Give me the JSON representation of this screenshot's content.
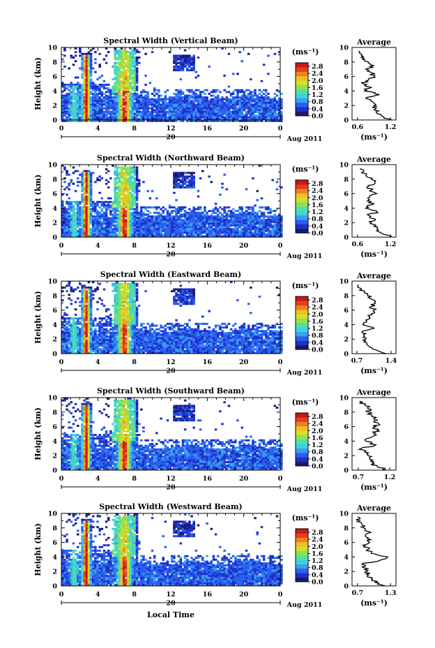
{
  "chart_data": [
    {
      "type": "heatmap",
      "title": "Spectral Width (Vertical Beam)",
      "xlabel": "",
      "ylabel": "Height (km)",
      "x_ticks": [
        "0",
        "4",
        "8",
        "12",
        "16",
        "20",
        "0"
      ],
      "xlim": [
        0,
        24
      ],
      "y_ticks": [
        "0",
        "2",
        "4",
        "6",
        "8",
        "10"
      ],
      "ylim": [
        0,
        10
      ],
      "date_center": "20",
      "date_right": "Aug 2011",
      "colorbar": {
        "unit": "(ms⁻¹)",
        "ticks": [
          "0.0",
          "0.4",
          "0.8",
          "1.2",
          "1.6",
          "2.0",
          "2.4",
          "2.8"
        ],
        "range": [
          0,
          3.0
        ]
      },
      "avg_profile": {
        "title": "Average",
        "xlabel": "(ms⁻¹)",
        "x_ticks": [
          "0.6",
          "1.2"
        ],
        "xlim": [
          0.5,
          1.3
        ],
        "heights_km": [
          0,
          0.5,
          1,
          1.5,
          2,
          2.5,
          3,
          3.5,
          4,
          4.5,
          5,
          5.5,
          6,
          6.5,
          7,
          7.5,
          8,
          8.5,
          9,
          9.5
        ],
        "values": [
          1.22,
          1.05,
          0.95,
          0.92,
          0.9,
          0.88,
          0.75,
          1.0,
          0.72,
          0.85,
          0.7,
          0.8,
          0.9,
          0.85,
          0.75,
          0.9,
          0.8,
          0.72,
          0.68,
          0.62
        ]
      }
    },
    {
      "type": "heatmap",
      "title": "Spectral Width (Northward Beam)",
      "xlabel": "",
      "ylabel": "Height (km)",
      "x_ticks": [
        "0",
        "4",
        "8",
        "12",
        "16",
        "20",
        "0"
      ],
      "xlim": [
        0,
        24
      ],
      "y_ticks": [
        "0",
        "2",
        "4",
        "6",
        "8",
        "10"
      ],
      "ylim": [
        0,
        10
      ],
      "date_center": "20",
      "date_right": "Aug 2011",
      "colorbar": {
        "unit": "(ms⁻¹)",
        "ticks": [
          "0.0",
          "0.4",
          "0.8",
          "1.2",
          "1.6",
          "2.0",
          "2.4",
          "2.8"
        ],
        "range": [
          0,
          3.0
        ]
      },
      "avg_profile": {
        "title": "Average",
        "xlabel": "(ms⁻¹)",
        "x_ticks": [
          "0.6",
          "1.2"
        ],
        "xlim": [
          0.5,
          1.3
        ],
        "heights_km": [
          0,
          0.5,
          1,
          1.5,
          2,
          2.5,
          3,
          3.5,
          4,
          4.5,
          5,
          5.5,
          6,
          6.5,
          7,
          7.5,
          8,
          8.5,
          9,
          9.5
        ],
        "values": [
          1.2,
          1.05,
          0.98,
          0.9,
          0.85,
          0.92,
          0.8,
          0.95,
          0.75,
          0.88,
          0.78,
          0.82,
          0.95,
          0.85,
          0.8,
          0.92,
          0.85,
          0.75,
          0.7,
          0.65
        ]
      }
    },
    {
      "type": "heatmap",
      "title": "Spectral Width (Eastward Beam)",
      "xlabel": "",
      "ylabel": "Height (km)",
      "x_ticks": [
        "0",
        "4",
        "8",
        "12",
        "16",
        "20",
        "0"
      ],
      "xlim": [
        0,
        24
      ],
      "y_ticks": [
        "0",
        "2",
        "4",
        "6",
        "8",
        "10"
      ],
      "ylim": [
        0,
        10
      ],
      "date_center": "20",
      "date_right": "Aug 2011",
      "colorbar": {
        "unit": "(ms⁻¹)",
        "ticks": [
          "0.0",
          "0.4",
          "0.8",
          "1.2",
          "1.6",
          "2.0",
          "2.4",
          "2.8"
        ],
        "range": [
          0,
          3.0
        ]
      },
      "avg_profile": {
        "title": "Average",
        "xlabel": "(ms⁻¹)",
        "x_ticks": [
          "0.7",
          "1.4"
        ],
        "xlim": [
          0.6,
          1.5
        ],
        "heights_km": [
          0,
          0.5,
          1,
          1.5,
          2,
          2.5,
          3,
          3.5,
          4,
          4.5,
          5,
          5.5,
          6,
          6.5,
          7,
          7.5,
          8,
          8.5,
          9,
          9.5
        ],
        "values": [
          1.3,
          1.1,
          0.95,
          0.9,
          0.88,
          0.85,
          0.8,
          1.05,
          0.82,
          0.9,
          0.95,
          1.0,
          1.05,
          1.0,
          1.08,
          1.0,
          0.92,
          0.85,
          0.78,
          0.72
        ]
      }
    },
    {
      "type": "heatmap",
      "title": "Spectral Width (Southward Beam)",
      "xlabel": "",
      "ylabel": "Height (km)",
      "x_ticks": [
        "0",
        "4",
        "8",
        "12",
        "16",
        "20",
        "0"
      ],
      "xlim": [
        0,
        24
      ],
      "y_ticks": [
        "0",
        "2",
        "4",
        "6",
        "8",
        "10"
      ],
      "ylim": [
        0,
        10
      ],
      "date_center": "20",
      "date_right": "Aug 2011",
      "colorbar": {
        "unit": "(ms⁻¹)",
        "ticks": [
          "0.0",
          "0.4",
          "0.8",
          "1.2",
          "1.6",
          "2.0",
          "2.4",
          "2.8"
        ],
        "range": [
          0,
          3.0
        ]
      },
      "avg_profile": {
        "title": "Average",
        "xlabel": "(ms⁻¹)",
        "x_ticks": [
          "0.7",
          "1.2"
        ],
        "xlim": [
          0.6,
          1.3
        ],
        "heights_km": [
          0,
          0.5,
          1,
          1.5,
          2,
          2.5,
          3,
          3.5,
          4,
          4.5,
          5,
          5.5,
          6,
          6.5,
          7,
          7.5,
          8,
          8.5,
          9,
          9.5
        ],
        "values": [
          1.15,
          1.0,
          0.92,
          0.88,
          0.85,
          0.8,
          0.75,
          0.98,
          0.82,
          0.9,
          0.95,
          1.0,
          0.98,
          1.02,
          0.95,
          0.92,
          0.88,
          0.85,
          0.8,
          0.72
        ]
      }
    },
    {
      "type": "heatmap",
      "title": "Spectral Width (Westward Beam)",
      "xlabel": "Local Time",
      "ylabel": "Height (km)",
      "x_ticks": [
        "0",
        "4",
        "8",
        "12",
        "16",
        "20",
        "0"
      ],
      "xlim": [
        0,
        24
      ],
      "y_ticks": [
        "0",
        "2",
        "4",
        "6",
        "8",
        "10"
      ],
      "ylim": [
        0,
        10
      ],
      "date_center": "20",
      "date_right": "Aug 2011",
      "colorbar": {
        "unit": "(ms⁻¹)",
        "ticks": [
          "0.0",
          "0.4",
          "0.8",
          "1.2",
          "1.6",
          "2.0",
          "2.4",
          "2.8"
        ],
        "range": [
          0,
          3.0
        ]
      },
      "avg_profile": {
        "title": "Average",
        "xlabel": "(ms⁻¹)",
        "x_ticks": [
          "0.7",
          "1.3"
        ],
        "xlim": [
          0.6,
          1.4
        ],
        "heights_km": [
          0,
          0.5,
          1,
          1.5,
          2,
          2.5,
          3,
          3.5,
          4,
          4.5,
          5,
          5.5,
          6,
          6.5,
          7,
          7.5,
          8,
          8.5,
          9,
          9.5
        ],
        "values": [
          1.2,
          1.02,
          0.95,
          0.9,
          0.86,
          0.82,
          0.78,
          1.1,
          1.25,
          0.95,
          0.88,
          0.84,
          0.92,
          0.88,
          0.85,
          0.9,
          0.82,
          0.78,
          0.74,
          0.7
        ]
      }
    }
  ],
  "colors": {
    "colormap": [
      "#1a1a6e",
      "#2030c8",
      "#2a60f0",
      "#3aa0f0",
      "#40d0e0",
      "#50e0a0",
      "#90e050",
      "#d0e030",
      "#f0c020",
      "#f08020",
      "#e04020",
      "#c81818"
    ],
    "no_data": "#ffffff",
    "axis": "#000000"
  }
}
